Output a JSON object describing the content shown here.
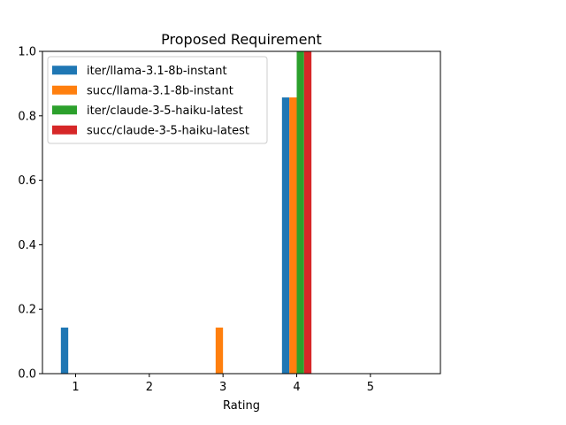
{
  "chart_data": {
    "type": "bar",
    "title": "Proposed Requirement",
    "xlabel": "Rating",
    "ylabel": "",
    "categories": [
      1,
      2,
      3,
      4,
      5
    ],
    "x_tick_labels": [
      "1",
      "2",
      "3",
      "4",
      "5"
    ],
    "y_ticks": [
      0.0,
      0.2,
      0.4,
      0.6,
      0.8,
      1.0
    ],
    "y_tick_labels": [
      "0.0",
      "0.2",
      "0.4",
      "0.6",
      "0.8",
      "1.0"
    ],
    "ylim": [
      0,
      1.0
    ],
    "xlim": [
      0.55,
      5.95
    ],
    "grid": false,
    "legend_position": "top-left",
    "series": [
      {
        "name": "iter/llama-3.1-8b-instant",
        "color": "#1f77b4",
        "values": [
          0.143,
          0,
          0,
          0.857,
          0
        ]
      },
      {
        "name": "succ/llama-3.1-8b-instant",
        "color": "#ff7f0e",
        "values": [
          0,
          0,
          0.143,
          0.857,
          0
        ]
      },
      {
        "name": "iter/claude-3-5-haiku-latest",
        "color": "#2ca02c",
        "values": [
          0,
          0,
          0,
          1.0,
          0
        ]
      },
      {
        "name": "succ/claude-3-5-haiku-latest",
        "color": "#d62728",
        "values": [
          0,
          0,
          0,
          1.0,
          0
        ]
      }
    ]
  }
}
